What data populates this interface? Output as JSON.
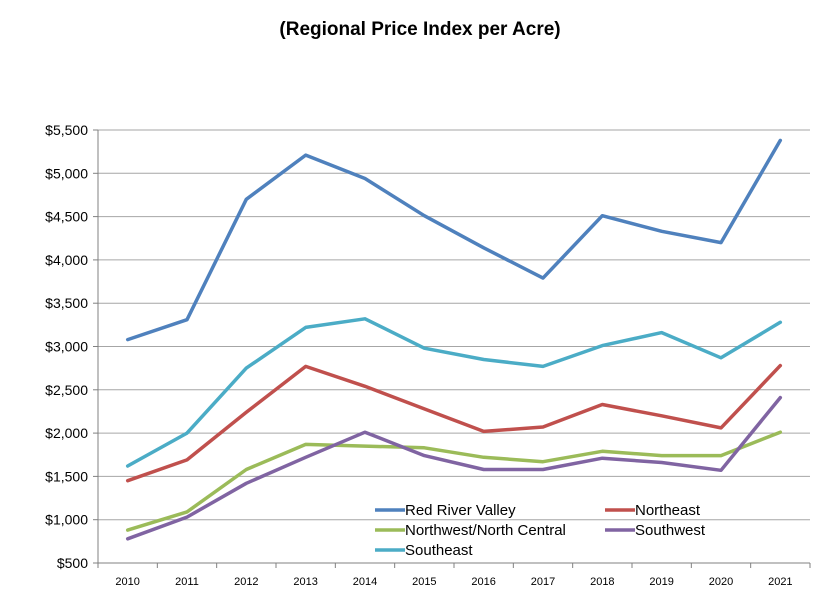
{
  "chart_data": {
    "type": "line",
    "title": "(Regional Price Index per Acre)",
    "xlabel": "",
    "ylabel": "",
    "ylim": [
      500,
      5500
    ],
    "y_ticks": [
      "$500",
      "$1,000",
      "$1,500",
      "$2,000",
      "$2,500",
      "$3,000",
      "$3,500",
      "$4,000",
      "$4,500",
      "$5,000",
      "$5,500"
    ],
    "y_tick_values": [
      500,
      1000,
      1500,
      2000,
      2500,
      3000,
      3500,
      4000,
      4500,
      5000,
      5500
    ],
    "x": [
      "2010",
      "2011",
      "2012",
      "2013",
      "2014",
      "2015",
      "2016",
      "2017",
      "2018",
      "2019",
      "2020",
      "2021"
    ],
    "grid": "horizontal",
    "legend_position": "bottom-right inside plot",
    "series": [
      {
        "name": "Red River Valley",
        "color": "#4f81bd",
        "values": [
          3080,
          3310,
          4700,
          5210,
          4940,
          4510,
          4140,
          3790,
          4510,
          4330,
          4200,
          5380
        ]
      },
      {
        "name": "Northeast",
        "color": "#c0504d",
        "values": [
          1450,
          1690,
          2240,
          2770,
          2540,
          2280,
          2020,
          2070,
          2330,
          2200,
          2060,
          2780
        ]
      },
      {
        "name": "Northwest/North Central",
        "color": "#9bbb59",
        "values": [
          880,
          1090,
          1580,
          1870,
          1850,
          1830,
          1720,
          1670,
          1790,
          1740,
          1740,
          2010
        ]
      },
      {
        "name": "Southwest",
        "color": "#8064a2",
        "values": [
          780,
          1030,
          1420,
          1720,
          2010,
          1740,
          1580,
          1580,
          1710,
          1660,
          1570,
          2410
        ]
      },
      {
        "name": "Southeast",
        "color": "#4bacc6",
        "values": [
          1620,
          2000,
          2750,
          3220,
          3320,
          2980,
          2850,
          2770,
          3010,
          3160,
          2870,
          3280
        ]
      }
    ]
  }
}
